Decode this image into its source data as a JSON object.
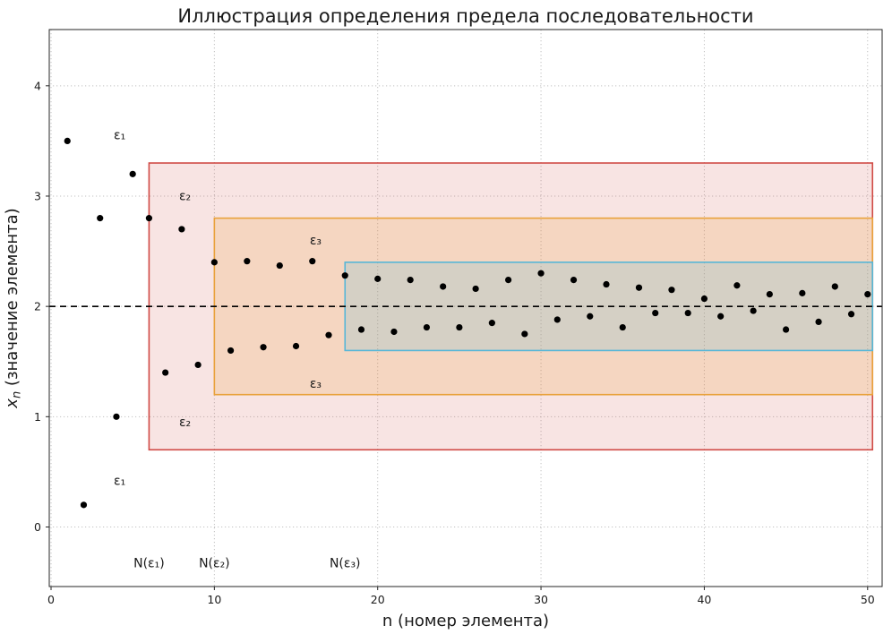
{
  "chart_data": {
    "type": "scatter",
    "title": "Иллюстрация определения предела последовательности",
    "xlabel": "n (номер элемента)",
    "ylabel": "xₙ (значение элемента)",
    "ylabel_math": {
      "var": "x",
      "sub": "n",
      "rest": " (значение элемента)"
    },
    "xlim": [
      -0.11,
      50.89
    ],
    "ylim": [
      -0.54,
      4.51
    ],
    "xticks": [
      0,
      10,
      20,
      30,
      40,
      50
    ],
    "yticks": [
      0,
      1,
      2,
      3,
      4
    ],
    "grid": true,
    "grid_color": "#b3b3b3",
    "axes_color": "#262626",
    "point_color": "#000000",
    "limit_line": {
      "value": 2,
      "color": "#000000",
      "style": "dashed"
    },
    "x": [
      1,
      2,
      3,
      4,
      5,
      6,
      7,
      8,
      9,
      10,
      11,
      12,
      13,
      14,
      15,
      16,
      17,
      18,
      19,
      20,
      21,
      22,
      23,
      24,
      25,
      26,
      27,
      28,
      29,
      30,
      31,
      32,
      33,
      34,
      35,
      36,
      37,
      38,
      39,
      40,
      41,
      42,
      43,
      44,
      45,
      46,
      47,
      48,
      49,
      50
    ],
    "y": [
      3.5,
      0.2,
      2.8,
      1.0,
      3.2,
      2.8,
      1.4,
      2.7,
      1.47,
      2.4,
      1.6,
      2.41,
      1.63,
      2.37,
      1.64,
      2.41,
      1.74,
      2.28,
      1.79,
      2.25,
      1.77,
      2.24,
      1.81,
      2.18,
      1.81,
      2.16,
      1.85,
      2.24,
      1.75,
      2.3,
      1.88,
      2.24,
      1.91,
      2.2,
      1.81,
      2.17,
      1.94,
      2.15,
      1.94,
      2.07,
      1.91,
      2.19,
      1.96,
      2.11,
      1.79,
      2.12,
      1.86,
      2.18,
      1.93,
      2.11
    ],
    "bands": [
      {
        "name": "epsilon-1",
        "epsilon_label": "ε₁",
        "n_label": "N(ε₁)",
        "N": 6,
        "x_end": 50.3,
        "y_low": 0.7,
        "y_high": 3.3,
        "epsilon": 1.3,
        "color": "#d04a45",
        "fill_opacity": 0.15,
        "label_top": {
          "x": 4.2,
          "y": 3.55
        },
        "label_bottom": {
          "x": 4.2,
          "y": 0.42
        },
        "n_label_pos": {
          "x": 6,
          "y": -0.33
        }
      },
      {
        "name": "epsilon-2",
        "epsilon_label": "ε₂",
        "n_label": "N(ε₂)",
        "N": 10,
        "x_end": 50.3,
        "y_low": 1.2,
        "y_high": 2.8,
        "epsilon": 0.8,
        "color": "#e9a13b",
        "fill_opacity": 0.2,
        "label_top": {
          "x": 8.2,
          "y": 3.0
        },
        "label_bottom": {
          "x": 8.2,
          "y": 0.95
        },
        "n_label_pos": {
          "x": 10,
          "y": -0.33
        }
      },
      {
        "name": "epsilon-3",
        "epsilon_label": "ε₃",
        "n_label": "N(ε₃)",
        "N": 18,
        "x_end": 50.3,
        "y_low": 1.6,
        "y_high": 2.4,
        "epsilon": 0.4,
        "color": "#57b7d7",
        "fill_opacity": 0.2,
        "label_top": {
          "x": 16.2,
          "y": 2.6
        },
        "label_bottom": {
          "x": 16.2,
          "y": 1.3
        },
        "n_label_pos": {
          "x": 18,
          "y": -0.33
        }
      }
    ]
  }
}
